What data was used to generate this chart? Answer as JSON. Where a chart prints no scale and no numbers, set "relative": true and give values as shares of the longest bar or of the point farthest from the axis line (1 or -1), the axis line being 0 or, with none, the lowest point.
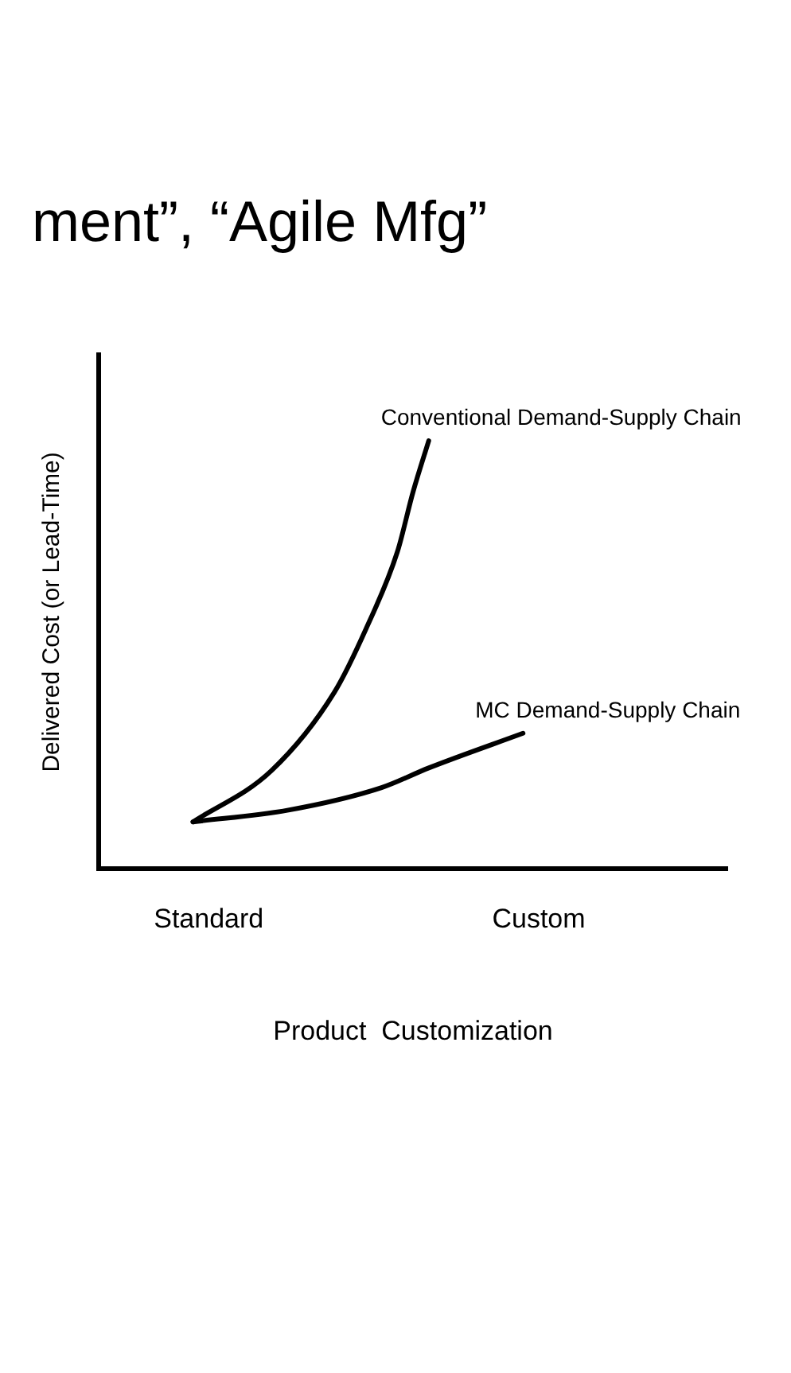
{
  "chart_data": {
    "type": "line",
    "title": "ment”, “Agile Mfg”",
    "xlabel": "Product  Customization",
    "ylabel": "Delivered Cost (or Lead-Time)",
    "relative": true,
    "categories": [
      null,
      null,
      null,
      null,
      null,
      null,
      null,
      "Standard",
      null,
      null,
      null,
      null,
      null,
      null,
      null,
      null,
      null,
      null,
      null,
      null,
      null,
      null,
      null,
      null,
      null,
      null,
      null,
      null,
      "Custom",
      null,
      null,
      null,
      null,
      null,
      null,
      null,
      null,
      null,
      null,
      null,
      null
    ],
    "series": [
      {
        "name": "Conventional Demand-Supply Chain",
        "color": "#000000",
        "values": [
          null,
          null,
          null,
          null,
          null,
          null,
          0.11,
          null,
          null,
          null,
          null,
          0.23,
          null,
          null,
          null,
          0.413,
          null,
          0.56,
          null,
          0.74,
          0.88,
          1,
          null,
          null,
          null,
          null,
          null,
          null,
          null,
          null,
          null,
          null,
          null,
          null,
          null,
          null,
          null,
          null,
          null,
          null,
          null
        ]
      },
      {
        "name": "MC Demand-Supply Chain",
        "color": "#000000",
        "values": [
          null,
          null,
          null,
          null,
          null,
          null,
          0.11,
          null,
          null,
          null,
          null,
          null,
          0.137,
          null,
          null,
          null,
          null,
          null,
          0.19,
          null,
          null,
          0.236,
          null,
          null,
          null,
          null,
          null,
          0.317,
          null,
          null,
          null,
          null,
          null,
          null,
          null,
          null,
          null,
          null,
          null,
          null,
          null
        ]
      }
    ],
    "legend": false,
    "grid": false,
    "marker": "none",
    "line_style": "solid"
  }
}
